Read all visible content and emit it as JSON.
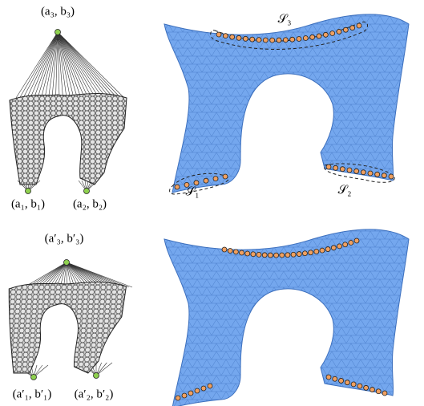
{
  "top": {
    "apex_label": "(a₃, b₃)",
    "left_label": "(a₁, b₁)",
    "right_label": "(a₂, b₂)",
    "set_labels": [
      "𝒮₃",
      "𝒮₁",
      "𝒮₂"
    ]
  },
  "bottom": {
    "apex_label": "(a′₃, b′₃)",
    "left_label": "(a′₁, b′₁)",
    "right_label": "(a′₂, b′₂)"
  }
}
